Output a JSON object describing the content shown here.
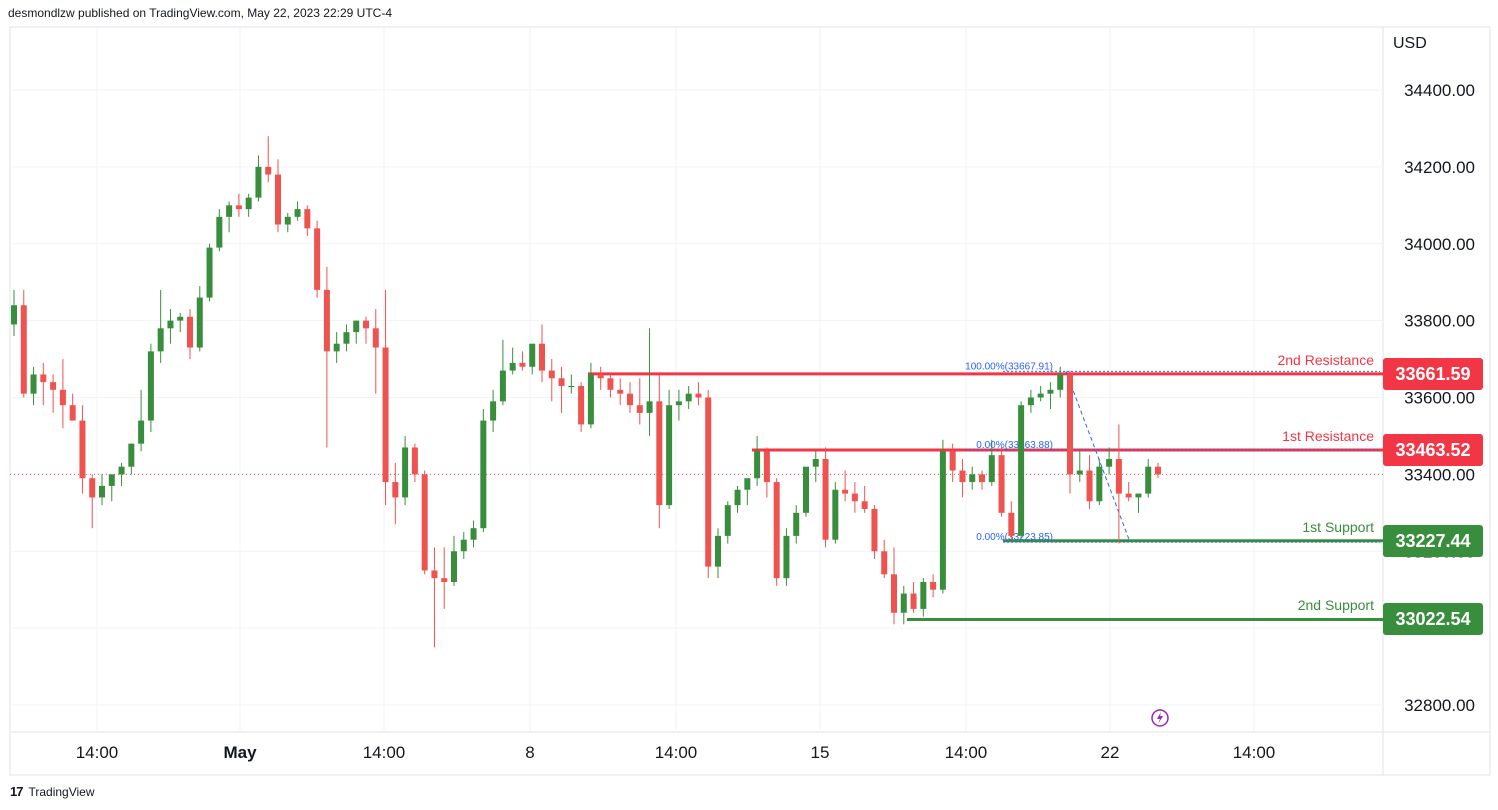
{
  "header": {
    "publisher_line": "desmondlzw published on TradingView.com, May 22, 2023 22:29 UTC-4"
  },
  "footer": {
    "brand": "TradingView",
    "logo_text": "17"
  },
  "colors": {
    "bull": "#388e3c",
    "bear": "#ef5350",
    "resistance": "#f23645",
    "support": "#388e3c",
    "fib": "#2962ff",
    "grid": "#f0f3fa"
  },
  "chart_data": {
    "type": "candlestick",
    "currency": "USD",
    "y_ticks": [
      "34400.00",
      "34200.00",
      "34000.00",
      "33800.00",
      "33600.00",
      "33400.00",
      "33200.00",
      "33000.00",
      "32800.00"
    ],
    "ylim": [
      32750,
      34560
    ],
    "x_ticks": [
      "14:00",
      "May",
      "14:00",
      "8",
      "14:00",
      "15",
      "14:00",
      "22",
      "14:00"
    ],
    "levels": [
      {
        "name": "2nd Resistance",
        "value": "33661.59",
        "kind": "resistance"
      },
      {
        "name": "1st Resistance",
        "value": "33463.52",
        "kind": "resistance"
      },
      {
        "name": "1st Support",
        "value": "33227.44",
        "kind": "support"
      },
      {
        "name": "2nd Support",
        "value": "33022.54",
        "kind": "support"
      }
    ],
    "fib_labels": [
      "100.00%(33667.91)",
      "0.00%(33463.88)",
      "0.00%(33223.85)"
    ],
    "candles": [
      [
        33790,
        33880,
        33760,
        33840
      ],
      [
        33840,
        33880,
        33600,
        33610
      ],
      [
        33610,
        33680,
        33580,
        33660
      ],
      [
        33660,
        33690,
        33580,
        33640
      ],
      [
        33640,
        33660,
        33560,
        33620
      ],
      [
        33620,
        33700,
        33520,
        33580
      ],
      [
        33580,
        33610,
        33540,
        33540
      ],
      [
        33540,
        33580,
        33350,
        33390
      ],
      [
        33390,
        33400,
        33260,
        33340
      ],
      [
        33340,
        33400,
        33320,
        33370
      ],
      [
        33370,
        33400,
        33330,
        33400
      ],
      [
        33400,
        33430,
        33370,
        33420
      ],
      [
        33420,
        33480,
        33400,
        33480
      ],
      [
        33480,
        33620,
        33460,
        33540
      ],
      [
        33540,
        33740,
        33510,
        33720
      ],
      [
        33720,
        33880,
        33690,
        33780
      ],
      [
        33780,
        33830,
        33740,
        33800
      ],
      [
        33800,
        33820,
        33770,
        33810
      ],
      [
        33810,
        33830,
        33700,
        33730
      ],
      [
        33730,
        33890,
        33720,
        33860
      ],
      [
        33860,
        34000,
        33850,
        33990
      ],
      [
        33990,
        34090,
        33980,
        34070
      ],
      [
        34070,
        34110,
        34030,
        34100
      ],
      [
        34100,
        34130,
        34070,
        34090
      ],
      [
        34090,
        34130,
        34070,
        34120
      ],
      [
        34120,
        34230,
        34110,
        34200
      ],
      [
        34200,
        34280,
        34160,
        34180
      ],
      [
        34180,
        34220,
        34030,
        34050
      ],
      [
        34050,
        34080,
        34030,
        34070
      ],
      [
        34070,
        34110,
        34060,
        34090
      ],
      [
        34090,
        34100,
        34020,
        34040
      ],
      [
        34040,
        34060,
        33860,
        33880
      ],
      [
        33880,
        33940,
        33470,
        33720
      ],
      [
        33720,
        33770,
        33690,
        33740
      ],
      [
        33740,
        33790,
        33720,
        33770
      ],
      [
        33770,
        33800,
        33740,
        33800
      ],
      [
        33800,
        33810,
        33740,
        33780
      ],
      [
        33780,
        33830,
        33610,
        33730
      ],
      [
        33730,
        33880,
        33320,
        33380
      ],
      [
        33380,
        33430,
        33270,
        33340
      ],
      [
        33340,
        33500,
        33320,
        33470
      ],
      [
        33470,
        33480,
        33380,
        33400
      ],
      [
        33400,
        33410,
        33140,
        33150
      ],
      [
        33150,
        33210,
        32950,
        33130
      ],
      [
        33130,
        33210,
        33050,
        33120
      ],
      [
        33120,
        33240,
        33110,
        33200
      ],
      [
        33200,
        33250,
        33180,
        33230
      ],
      [
        33230,
        33280,
        33210,
        33260
      ],
      [
        33260,
        33570,
        33250,
        33540
      ],
      [
        33540,
        33620,
        33510,
        33590
      ],
      [
        33590,
        33750,
        33580,
        33670
      ],
      [
        33670,
        33730,
        33660,
        33690
      ],
      [
        33690,
        33720,
        33670,
        33680
      ],
      [
        33680,
        33730,
        33660,
        33740
      ],
      [
        33740,
        33790,
        33640,
        33670
      ],
      [
        33670,
        33700,
        33590,
        33650
      ],
      [
        33650,
        33680,
        33560,
        33630
      ],
      [
        33630,
        33660,
        33610,
        33630
      ],
      [
        33630,
        33640,
        33510,
        33530
      ],
      [
        33530,
        33690,
        33520,
        33660
      ],
      [
        33660,
        33680,
        33620,
        33650
      ],
      [
        33650,
        33660,
        33600,
        33620
      ],
      [
        33620,
        33650,
        33580,
        33610
      ],
      [
        33610,
        33640,
        33560,
        33580
      ],
      [
        33580,
        33650,
        33530,
        33560
      ],
      [
        33560,
        33780,
        33500,
        33590
      ],
      [
        33590,
        33660,
        33260,
        33320
      ],
      [
        33320,
        33620,
        33310,
        33580
      ],
      [
        33580,
        33620,
        33540,
        33590
      ],
      [
        33590,
        33630,
        33570,
        33610
      ],
      [
        33610,
        33640,
        33580,
        33600
      ],
      [
        33600,
        33620,
        33130,
        33160
      ],
      [
        33160,
        33260,
        33130,
        33240
      ],
      [
        33240,
        33330,
        33220,
        33320
      ],
      [
        33320,
        33370,
        33300,
        33360
      ],
      [
        33360,
        33380,
        33320,
        33390
      ],
      [
        33390,
        33500,
        33370,
        33460
      ],
      [
        33460,
        33470,
        33340,
        33380
      ],
      [
        33380,
        33390,
        33110,
        33130
      ],
      [
        33130,
        33260,
        33110,
        33240
      ],
      [
        33240,
        33320,
        33220,
        33300
      ],
      [
        33300,
        33410,
        33290,
        33420
      ],
      [
        33420,
        33460,
        33380,
        33440
      ],
      [
        33440,
        33470,
        33210,
        33230
      ],
      [
        33230,
        33380,
        33220,
        33360
      ],
      [
        33360,
        33410,
        33330,
        33350
      ],
      [
        33350,
        33380,
        33300,
        33330
      ],
      [
        33330,
        33370,
        33300,
        33310
      ],
      [
        33310,
        33320,
        33180,
        33200
      ],
      [
        33200,
        33230,
        33130,
        33140
      ],
      [
        33140,
        33210,
        33010,
        33040
      ],
      [
        33040,
        33110,
        33010,
        33090
      ],
      [
        33090,
        33120,
        33040,
        33050
      ],
      [
        33050,
        33130,
        33030,
        33120
      ],
      [
        33120,
        33140,
        33080,
        33100
      ],
      [
        33100,
        33490,
        33090,
        33460
      ],
      [
        33460,
        33480,
        33380,
        33410
      ],
      [
        33410,
        33440,
        33340,
        33380
      ],
      [
        33380,
        33420,
        33360,
        33400
      ],
      [
        33400,
        33410,
        33360,
        33380
      ],
      [
        33380,
        33490,
        33370,
        33450
      ],
      [
        33450,
        33470,
        33290,
        33300
      ],
      [
        33300,
        33330,
        33230,
        33240
      ],
      [
        33240,
        33590,
        33230,
        33580
      ],
      [
        33580,
        33620,
        33560,
        33600
      ],
      [
        33600,
        33630,
        33590,
        33610
      ],
      [
        33610,
        33640,
        33570,
        33620
      ],
      [
        33620,
        33680,
        33600,
        33660
      ],
      [
        33660,
        33670,
        33350,
        33400
      ],
      [
        33400,
        33460,
        33380,
        33410
      ],
      [
        33410,
        33450,
        33310,
        33330
      ],
      [
        33330,
        33440,
        33320,
        33420
      ],
      [
        33420,
        33470,
        33400,
        33440
      ],
      [
        33440,
        33530,
        33220,
        33350
      ],
      [
        33350,
        33380,
        33330,
        33340
      ],
      [
        33340,
        33350,
        33300,
        33350
      ],
      [
        33350,
        33440,
        33340,
        33420
      ],
      [
        33420,
        33430,
        33390,
        33400
      ]
    ]
  }
}
